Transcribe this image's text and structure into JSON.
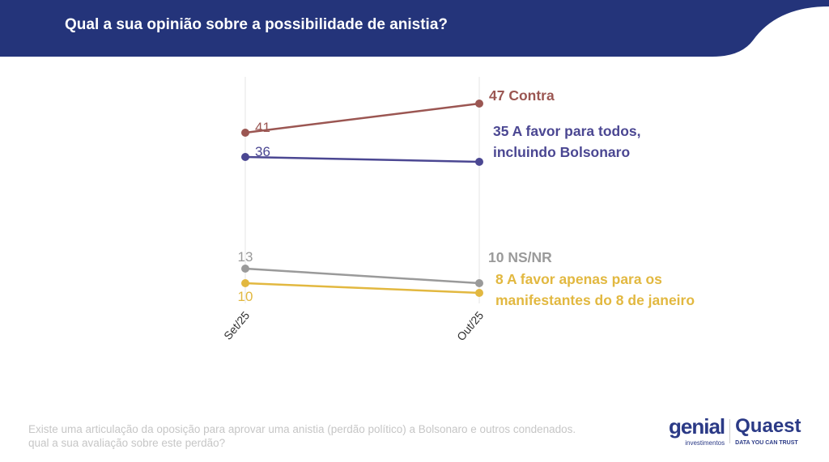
{
  "header": {
    "title": "Qual a sua opinião sobre a possibilidade de anistia?"
  },
  "footer": {
    "question": "Existe uma articulação da oposição para aprovar uma anistia (perdão político) a Bolsonaro e outros condenados. qual a sua avaliação sobre este perdão?"
  },
  "logos": {
    "genial": "genial",
    "genial_sub": "investimentos",
    "quaest": "Quaest",
    "quaest_sub": "DATA YOU CAN TRUST"
  },
  "colors": {
    "header": "#24347a"
  },
  "chart_data": {
    "type": "line",
    "categories": [
      "Set/25",
      "Out/25"
    ],
    "grid": "vertical",
    "series": [
      {
        "name": "Contra",
        "values": [
          41,
          47
        ],
        "color": "#9b5652",
        "end_label": [
          "47 Contra"
        ]
      },
      {
        "name": "A favor para todos, incluindo Bolsonaro",
        "values": [
          36,
          35
        ],
        "color": "#4b4792",
        "end_label": [
          "35 A favor para todos,",
          "incluindo Bolsonaro"
        ]
      },
      {
        "name": "NS/NR",
        "values": [
          13,
          10
        ],
        "color": "#9a9a9a",
        "end_label": [
          "10 NS/NR"
        ]
      },
      {
        "name": "A favor apenas para os manifestantes do 8 de janeiro",
        "values": [
          10,
          8
        ],
        "color": "#e2b840",
        "end_label": [
          "8 A favor apenas para os",
          "manifestantes do 8 de janeiro"
        ]
      }
    ]
  }
}
